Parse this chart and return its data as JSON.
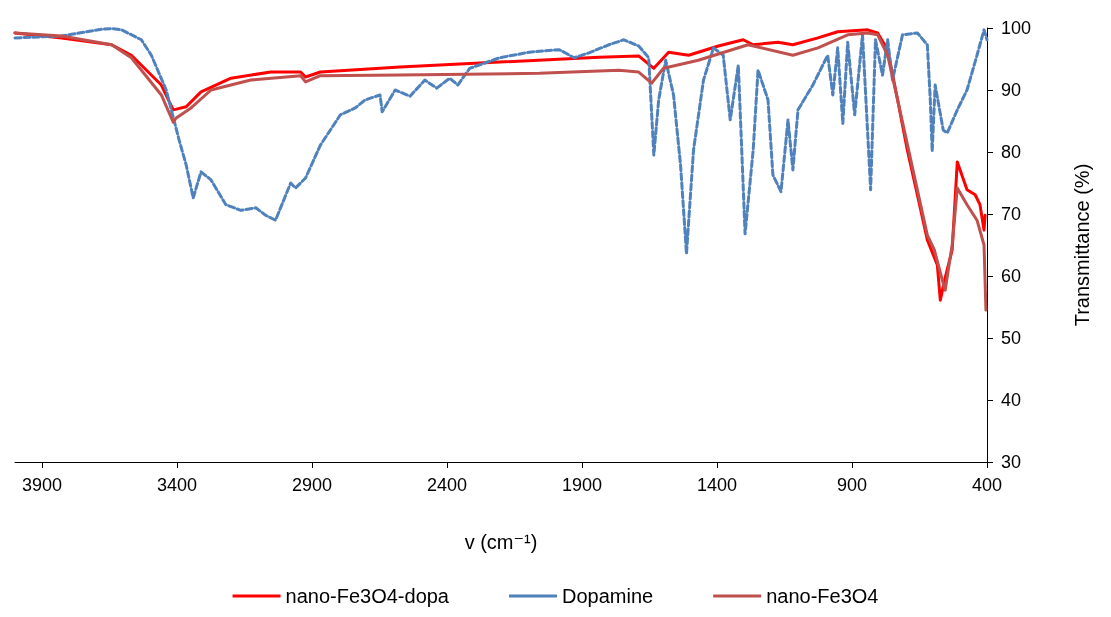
{
  "chart_data": {
    "type": "line",
    "xlabel": "v (cm⁻¹)",
    "ylabel": "Transmittance (%)",
    "xlim": [
      4000,
      400
    ],
    "xticks": [
      3900,
      3400,
      2900,
      2400,
      1900,
      1400,
      900,
      400
    ],
    "ylim": [
      30,
      100
    ],
    "yticks": [
      30,
      40,
      50,
      60,
      70,
      80,
      90,
      100
    ],
    "grid": false,
    "legend": "bottom",
    "marker": "none",
    "series": [
      {
        "name": "nano-Fe3O4-dopa",
        "color": "#ff0000",
        "line_style": "solid",
        "x": [
          4000,
          3827,
          3642,
          3569,
          3458,
          3414,
          3366,
          3311,
          3200,
          3053,
          2942,
          2924,
          2869,
          2574,
          2205,
          1837,
          1690,
          1634,
          1579,
          1505,
          1395,
          1303,
          1266,
          1174,
          1119,
          1026,
          953,
          842,
          805,
          768,
          731,
          695,
          658,
          621,
          584,
          573,
          555,
          529,
          510,
          474,
          444,
          426,
          411,
          407
        ],
        "values": [
          99.2,
          98.4,
          97.3,
          95.6,
          90.8,
          86.8,
          87.3,
          89.7,
          91.9,
          92.9,
          92.9,
          92.1,
          92.9,
          93.7,
          94.5,
          95.3,
          95.5,
          93.5,
          96.1,
          95.6,
          97.1,
          98.1,
          97.3,
          97.7,
          97.3,
          98.4,
          99.4,
          99.7,
          99.2,
          96.5,
          88.4,
          80.3,
          73.1,
          65.8,
          61.8,
          56.1,
          59.7,
          64.2,
          78.4,
          73.9,
          73.1,
          71.5,
          67.4,
          69.8
        ]
      },
      {
        "name": "Dopamine",
        "color": "#4f81bd",
        "line_style": "dashed",
        "x": [
          4000,
          3827,
          3679,
          3642,
          3605,
          3532,
          3495,
          3440,
          3392,
          3366,
          3340,
          3311,
          3274,
          3219,
          3164,
          3108,
          3072,
          3035,
          2979,
          2961,
          2924,
          2869,
          2795,
          2740,
          2703,
          2648,
          2640,
          2592,
          2537,
          2482,
          2438,
          2390,
          2360,
          2316,
          2205,
          2095,
          1984,
          1929,
          1874,
          1800,
          1745,
          1690,
          1653,
          1634,
          1616,
          1590,
          1561,
          1535,
          1513,
          1487,
          1450,
          1413,
          1377,
          1351,
          1321,
          1296,
          1266,
          1248,
          1211,
          1193,
          1163,
          1137,
          1119,
          1100,
          1045,
          990,
          971,
          953,
          934,
          916,
          890,
          861,
          831,
          813,
          787,
          768,
          750,
          713,
          658,
          621,
          610,
          603,
          592,
          562,
          547,
          510,
          474,
          437,
          411,
          400
        ],
        "values": [
          98.4,
          98.7,
          99.8,
          99.9,
          99.7,
          98.1,
          95.6,
          90.0,
          81.9,
          77.9,
          72.6,
          76.8,
          75.5,
          71.5,
          70.6,
          71.0,
          69.8,
          69.0,
          75.0,
          74.2,
          75.8,
          81.1,
          86.0,
          87.1,
          88.4,
          89.2,
          86.5,
          90.0,
          89.0,
          91.6,
          90.3,
          91.9,
          90.8,
          93.5,
          95.2,
          96.1,
          96.5,
          95.2,
          96.0,
          97.3,
          98.1,
          97.1,
          95.2,
          79.5,
          88.4,
          94.8,
          89.2,
          77.9,
          63.6,
          80.3,
          91.6,
          96.8,
          95.6,
          85.2,
          94.0,
          66.8,
          80.3,
          93.2,
          88.4,
          76.3,
          73.6,
          85.2,
          77.1,
          86.8,
          90.8,
          95.6,
          89.2,
          96.8,
          84.6,
          97.7,
          86.0,
          98.9,
          73.9,
          98.1,
          92.4,
          98.1,
          91.6,
          98.9,
          99.2,
          97.3,
          88.4,
          80.1,
          90.8,
          83.5,
          83.1,
          86.8,
          90.0,
          95.6,
          99.7,
          98.1
        ]
      },
      {
        "name": "nano-Fe3O4",
        "color": "#c0504d",
        "line_style": "solid",
        "x": [
          4000,
          3827,
          3642,
          3569,
          3458,
          3414,
          3403,
          3348,
          3274,
          3127,
          2942,
          2924,
          2869,
          2574,
          2058,
          1763,
          1690,
          1642,
          1598,
          1469,
          1285,
          1119,
          1026,
          916,
          842,
          805,
          768,
          731,
          658,
          621,
          595,
          566,
          555,
          529,
          510,
          474,
          437,
          411,
          404
        ],
        "values": [
          99.2,
          98.7,
          97.3,
          95.2,
          89.2,
          84.8,
          85.5,
          87.1,
          90.0,
          91.6,
          92.3,
          91.3,
          92.3,
          92.4,
          92.7,
          93.2,
          92.9,
          91.1,
          93.5,
          94.8,
          97.3,
          95.6,
          96.8,
          98.9,
          99.2,
          98.9,
          95.6,
          88.4,
          73.9,
          66.6,
          64.2,
          59.4,
          57.7,
          65.0,
          74.2,
          71.5,
          69.0,
          65.0,
          54.5
        ]
      }
    ]
  }
}
